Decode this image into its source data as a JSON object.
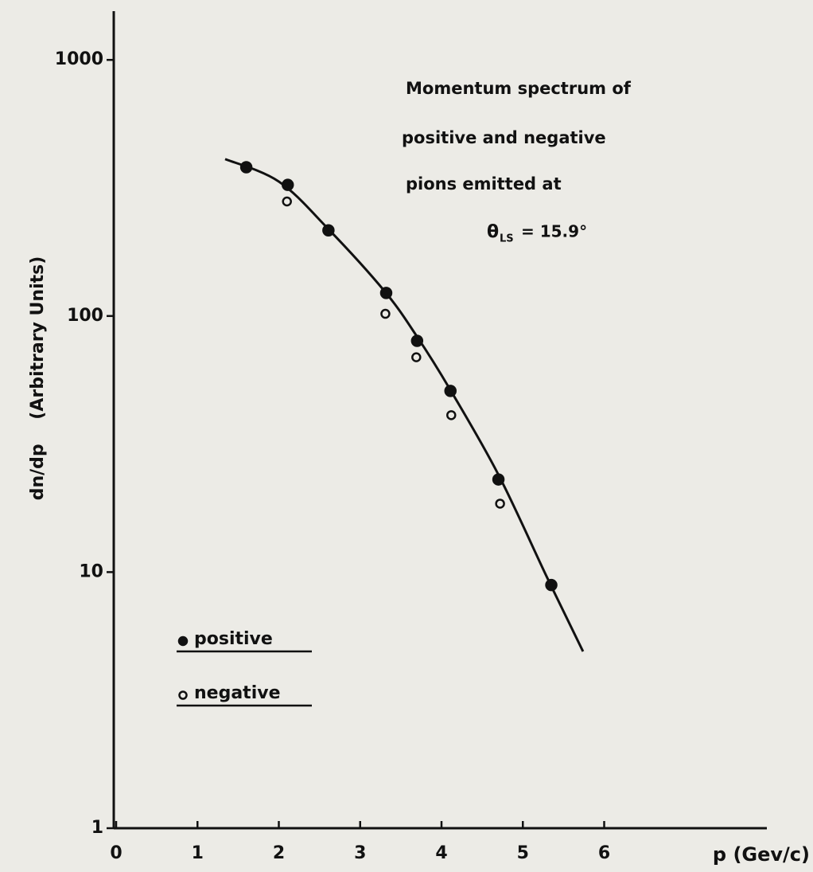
{
  "chart_data": {
    "type": "scatter",
    "annotation": {
      "lines": [
        "Momentum spectrum of",
        "positive and negative",
        "pions emitted at"
      ],
      "symbol": "θ",
      "subscript": "LS",
      "equation": "= 15.9°"
    },
    "x_label": "p (Gev/c)",
    "y_label": "dn/dp    (Arbitrary Units)",
    "log_y": true,
    "xlim": [
      0,
      8
    ],
    "ylim": [
      1,
      1550
    ],
    "xticks": [
      0,
      1,
      2,
      3,
      4,
      5,
      6
    ],
    "yticks": [
      1,
      10,
      100,
      1000
    ],
    "series": [
      {
        "name": "positive",
        "marker": "filled",
        "color": "#111111",
        "x": [
          1.6,
          2.11,
          2.61,
          3.32,
          3.7,
          4.11,
          4.7,
          5.35
        ],
        "values": [
          381,
          325,
          216,
          123,
          80,
          51,
          23,
          8.9
        ]
      },
      {
        "name": "negative",
        "marker": "open",
        "color": "#111111",
        "x": [
          2.1,
          3.31,
          3.69,
          4.12,
          4.72
        ],
        "values": [
          280,
          102,
          69,
          41,
          18.5
        ]
      },
      {
        "marker": "line",
        "color": "#111111",
        "x": [
          1.34,
          2.0,
          2.6,
          3.3,
          3.7,
          4.1,
          4.7,
          5.3,
          5.74
        ],
        "values": [
          410,
          335,
          220,
          125,
          83,
          52,
          24,
          9.5,
          4.9
        ]
      }
    ]
  }
}
